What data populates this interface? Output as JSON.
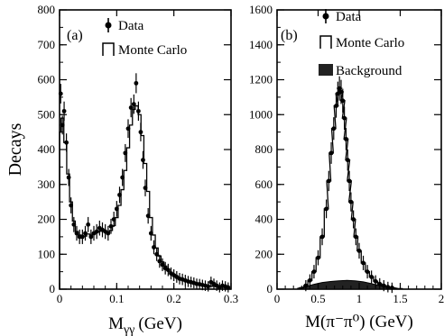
{
  "chart_data": [
    {
      "type": "scatter",
      "panel": "(a)",
      "xlabel": "M",
      "xlabel_sub": "γγ",
      "xlabel_unit": "(GeV)",
      "ylabel": "Decays",
      "xlim": [
        0,
        0.3
      ],
      "ylim": [
        0,
        800
      ],
      "xticks": [
        0,
        0.1,
        0.2,
        0.3
      ],
      "xtick_labels": [
        "0",
        "0.1",
        "0.2",
        "0.3"
      ],
      "yticks": [
        0,
        100,
        200,
        300,
        400,
        500,
        600,
        700,
        800
      ],
      "ytick_labels": [
        "0",
        "100",
        "200",
        "300",
        "400",
        "500",
        "600",
        "700",
        "800"
      ],
      "legend_position": "top-right",
      "legend": [
        {
          "name": "Data",
          "symbol": "point"
        },
        {
          "name": "Monte Carlo",
          "symbol": "histogram"
        }
      ],
      "series": [
        {
          "name": "Data",
          "x": [
            0.002,
            0.005,
            0.008,
            0.012,
            0.016,
            0.02,
            0.025,
            0.03,
            0.035,
            0.04,
            0.045,
            0.05,
            0.055,
            0.06,
            0.065,
            0.07,
            0.075,
            0.08,
            0.085,
            0.09,
            0.095,
            0.1,
            0.105,
            0.11,
            0.115,
            0.12,
            0.125,
            0.13,
            0.134,
            0.138,
            0.142,
            0.146,
            0.15,
            0.155,
            0.16,
            0.165,
            0.17,
            0.175,
            0.18,
            0.185,
            0.19,
            0.195,
            0.2,
            0.205,
            0.21,
            0.215,
            0.22,
            0.225,
            0.23,
            0.235,
            0.24,
            0.245,
            0.25,
            0.255,
            0.26,
            0.265,
            0.27,
            0.275,
            0.28,
            0.285,
            0.29,
            0.295
          ],
          "y": [
            560,
            470,
            510,
            420,
            320,
            240,
            185,
            160,
            150,
            150,
            160,
            185,
            150,
            160,
            165,
            175,
            170,
            165,
            160,
            180,
            200,
            230,
            270,
            320,
            390,
            460,
            520,
            530,
            590,
            510,
            450,
            370,
            290,
            210,
            160,
            120,
            100,
            80,
            70,
            60,
            55,
            45,
            40,
            35,
            30,
            28,
            25,
            22,
            20,
            18,
            15,
            14,
            12,
            10,
            8,
            20,
            15,
            10,
            5,
            10,
            8,
            5
          ]
        },
        {
          "name": "Monte Carlo",
          "x": [
            0.0,
            0.005,
            0.01,
            0.015,
            0.02,
            0.025,
            0.03,
            0.035,
            0.04,
            0.045,
            0.05,
            0.055,
            0.06,
            0.065,
            0.07,
            0.075,
            0.08,
            0.085,
            0.09,
            0.095,
            0.1,
            0.105,
            0.11,
            0.115,
            0.12,
            0.125,
            0.13,
            0.135,
            0.14,
            0.145,
            0.15,
            0.155,
            0.16,
            0.165,
            0.17,
            0.175,
            0.18,
            0.185,
            0.19,
            0.195,
            0.2,
            0.205,
            0.21,
            0.215,
            0.22,
            0.225,
            0.23,
            0.235,
            0.24,
            0.245,
            0.25,
            0.255,
            0.26,
            0.265,
            0.27,
            0.275,
            0.28,
            0.285,
            0.29,
            0.295
          ],
          "y": [
            450,
            490,
            420,
            330,
            250,
            195,
            165,
            155,
            150,
            152,
            158,
            155,
            158,
            162,
            166,
            168,
            166,
            164,
            168,
            182,
            205,
            240,
            285,
            340,
            405,
            470,
            515,
            525,
            500,
            440,
            360,
            280,
            205,
            155,
            118,
            95,
            78,
            66,
            56,
            48,
            42,
            36,
            32,
            28,
            25,
            22,
            20,
            18,
            16,
            14,
            12,
            11,
            10,
            9,
            8,
            7,
            6,
            5,
            5,
            4
          ]
        }
      ]
    },
    {
      "type": "scatter",
      "panel": "(b)",
      "xlabel": "M(π⁻π⁰) (GeV)",
      "xlim": [
        0,
        2
      ],
      "ylim": [
        0,
        1600
      ],
      "xticks": [
        0,
        0.5,
        1,
        1.5,
        2
      ],
      "xtick_labels": [
        "0",
        "0.5",
        "1",
        "1.5",
        "2"
      ],
      "yticks": [
        0,
        200,
        400,
        600,
        800,
        1000,
        1200,
        1400,
        1600
      ],
      "ytick_labels": [
        "0",
        "200",
        "400",
        "600",
        "800",
        "1000",
        "1200",
        "1400",
        "1600"
      ],
      "legend_position": "top-right",
      "legend": [
        {
          "name": "Data",
          "symbol": "point"
        },
        {
          "name": "Monte Carlo",
          "symbol": "histogram"
        },
        {
          "name": "Background",
          "symbol": "filled"
        }
      ],
      "series": [
        {
          "name": "Data",
          "x": [
            0.35,
            0.4,
            0.45,
            0.5,
            0.55,
            0.6,
            0.63,
            0.66,
            0.69,
            0.72,
            0.74,
            0.76,
            0.78,
            0.8,
            0.82,
            0.84,
            0.86,
            0.88,
            0.9,
            0.93,
            0.96,
            1.0,
            1.05,
            1.1,
            1.15,
            1.2,
            1.25,
            1.3,
            1.35,
            1.4
          ],
          "y": [
            20,
            50,
            100,
            180,
            300,
            460,
            620,
            780,
            920,
            1050,
            1120,
            1150,
            1130,
            1080,
            980,
            860,
            740,
            620,
            500,
            400,
            300,
            220,
            150,
            100,
            70,
            45,
            30,
            20,
            12,
            8
          ]
        },
        {
          "name": "Monte Carlo",
          "x": [
            0.3,
            0.35,
            0.4,
            0.45,
            0.5,
            0.55,
            0.6,
            0.63,
            0.66,
            0.69,
            0.72,
            0.74,
            0.76,
            0.78,
            0.8,
            0.82,
            0.84,
            0.86,
            0.88,
            0.9,
            0.93,
            0.96,
            1.0,
            1.05,
            1.1,
            1.15,
            1.2,
            1.25,
            1.3,
            1.35,
            1.4,
            1.5
          ],
          "y": [
            8,
            20,
            50,
            100,
            180,
            300,
            460,
            620,
            780,
            920,
            1050,
            1120,
            1150,
            1130,
            1080,
            980,
            860,
            740,
            620,
            500,
            400,
            300,
            220,
            150,
            100,
            70,
            45,
            30,
            20,
            12,
            8,
            3
          ]
        },
        {
          "name": "Background",
          "x": [
            0.25,
            0.35,
            0.45,
            0.55,
            0.65,
            0.75,
            0.85,
            0.95,
            1.05,
            1.15,
            1.25,
            1.35,
            1.45
          ],
          "y": [
            5,
            15,
            28,
            38,
            44,
            48,
            50,
            48,
            42,
            32,
            20,
            10,
            4
          ]
        }
      ]
    }
  ]
}
